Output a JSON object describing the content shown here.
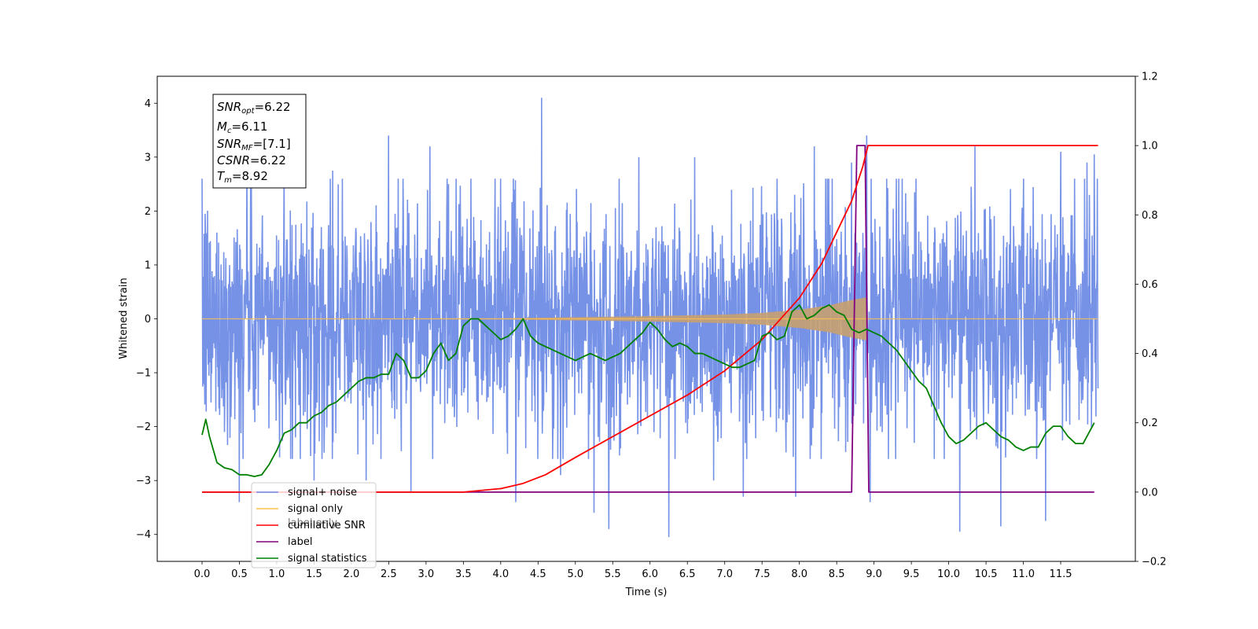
{
  "chart_data": {
    "type": "line",
    "xlabel": "Time (s)",
    "ylabel": "Whitened strain",
    "xlim": [
      -0.6,
      12.5
    ],
    "ylim": [
      -4.5,
      4.5
    ],
    "y2lim": [
      -0.2,
      1.2
    ],
    "x_ticks": [
      "0.0",
      "0.5",
      "1.0",
      "1.5",
      "2.0",
      "2.5",
      "3.0",
      "3.5",
      "4.0",
      "4.5",
      "5.0",
      "5.5",
      "6.0",
      "6.5",
      "7.0",
      "7.5",
      "8.0",
      "8.5",
      "9.0",
      "9.5",
      "10.0",
      "10.5",
      "11.0",
      "11.5"
    ],
    "y_ticks": [
      "4",
      "3",
      "2",
      "1",
      "0",
      "−1",
      "−2",
      "−3",
      "−4"
    ],
    "y2_ticks": [
      "1.2",
      "1.0",
      "0.8",
      "0.6",
      "0.4",
      "0.2",
      "0.0",
      "−0.2"
    ],
    "annotation": {
      "line1_main": "SNR",
      "line1_sub": "opt",
      "line1_val": "=6.22",
      "line2_main": "M",
      "line2_sub": "c",
      "line2_val": "=6.11",
      "line3_main": "SNR",
      "line3_sub": "MF",
      "line3_val": "=[7.1]",
      "line4_main": "CSNR",
      "line4_val": "=6.22",
      "line5_main": "T",
      "line5_sub": "m",
      "line5_val": "=8.92"
    },
    "legend": {
      "location": "lower-left",
      "entries": [
        "signal+ noise",
        "signal only",
        "cumilative SNR",
        "label",
        "signal statistics"
      ],
      "hidden_entry": "label only"
    },
    "colors": {
      "noise": "#6f8ce6",
      "signal": "#ffc04d",
      "signal_fill": "#c8a070",
      "csnr": "#ff0000",
      "label": "#800080",
      "stats": "#008000"
    },
    "series": [
      {
        "name": "signal+ noise",
        "axis": "left",
        "amplitude_std": 0.85,
        "spikes": [
          {
            "x": 0.05,
            "y": 1.4
          },
          {
            "x": 0.3,
            "y": -2.1
          },
          {
            "x": 0.5,
            "y": -3.4
          },
          {
            "x": 0.6,
            "y": 2.95
          },
          {
            "x": 1.1,
            "y": 2.8
          },
          {
            "x": 1.25,
            "y": -2.2
          },
          {
            "x": 1.5,
            "y": -3.0
          },
          {
            "x": 1.75,
            "y": 2.75
          },
          {
            "x": 2.2,
            "y": -3.0
          },
          {
            "x": 2.5,
            "y": 3.4
          },
          {
            "x": 2.8,
            "y": -3.2
          },
          {
            "x": 3.05,
            "y": 3.2
          },
          {
            "x": 3.3,
            "y": 2.5
          },
          {
            "x": 3.6,
            "y": 2.6
          },
          {
            "x": 4.2,
            "y": -3.4
          },
          {
            "x": 4.55,
            "y": 4.1
          },
          {
            "x": 4.8,
            "y": -2.9
          },
          {
            "x": 5.25,
            "y": -3.6
          },
          {
            "x": 5.45,
            "y": -3.9
          },
          {
            "x": 5.85,
            "y": 3.0
          },
          {
            "x": 6.25,
            "y": -4.05
          },
          {
            "x": 6.6,
            "y": 3.0
          },
          {
            "x": 6.85,
            "y": -3.0
          },
          {
            "x": 7.25,
            "y": -3.3
          },
          {
            "x": 7.7,
            "y": 2.6
          },
          {
            "x": 7.95,
            "y": -3.3
          },
          {
            "x": 8.2,
            "y": 3.2
          },
          {
            "x": 8.7,
            "y": 2.9
          },
          {
            "x": 8.9,
            "y": 3.4
          },
          {
            "x": 8.95,
            "y": -3.4
          },
          {
            "x": 9.3,
            "y": 2.6
          },
          {
            "x": 10.15,
            "y": -3.95
          },
          {
            "x": 10.35,
            "y": 3.2
          },
          {
            "x": 10.7,
            "y": -3.85
          },
          {
            "x": 11.3,
            "y": -3.75
          },
          {
            "x": 11.5,
            "y": 3.1
          },
          {
            "x": 11.85,
            "y": 2.9
          },
          {
            "x": 11.95,
            "y": 3.05
          }
        ],
        "x_range": [
          0.0,
          12.0
        ]
      },
      {
        "name": "signal only",
        "axis": "left",
        "envelope": [
          [
            0.0,
            0.0
          ],
          [
            4.0,
            0.01
          ],
          [
            6.0,
            0.05
          ],
          [
            7.0,
            0.08
          ],
          [
            7.5,
            0.11
          ],
          [
            8.0,
            0.17
          ],
          [
            8.4,
            0.25
          ],
          [
            8.7,
            0.35
          ],
          [
            8.9,
            0.4
          ],
          [
            8.92,
            0.0
          ],
          [
            12.0,
            0.0
          ]
        ]
      },
      {
        "name": "cumilative SNR",
        "axis": "right",
        "x": [
          0.0,
          1.0,
          2.0,
          3.0,
          3.5,
          4.0,
          4.3,
          4.6,
          5.0,
          5.5,
          6.0,
          6.5,
          7.0,
          7.5,
          8.0,
          8.3,
          8.5,
          8.7,
          8.85,
          8.92,
          12.0
        ],
        "values": [
          0.0,
          0.0,
          0.0,
          0.0,
          0.0,
          0.01,
          0.025,
          0.05,
          0.1,
          0.16,
          0.22,
          0.28,
          0.35,
          0.44,
          0.56,
          0.66,
          0.75,
          0.84,
          0.94,
          1.0,
          1.0
        ]
      },
      {
        "name": "label",
        "axis": "right",
        "x": [
          0.0,
          8.7,
          8.77,
          8.88,
          8.93,
          11.95
        ],
        "values": [
          0.0,
          0.0,
          1.0,
          1.0,
          0.0,
          0.0
        ]
      },
      {
        "name": "signal statistics",
        "axis": "right",
        "x": [
          0.0,
          0.05,
          0.1,
          0.2,
          0.3,
          0.4,
          0.5,
          0.6,
          0.7,
          0.8,
          0.9,
          1.0,
          1.1,
          1.2,
          1.3,
          1.4,
          1.5,
          1.6,
          1.7,
          1.8,
          1.9,
          2.0,
          2.1,
          2.2,
          2.3,
          2.4,
          2.5,
          2.6,
          2.7,
          2.8,
          2.9,
          3.0,
          3.1,
          3.2,
          3.3,
          3.4,
          3.5,
          3.6,
          3.7,
          3.8,
          3.9,
          4.0,
          4.1,
          4.2,
          4.3,
          4.4,
          4.5,
          4.6,
          4.7,
          4.8,
          4.9,
          5.0,
          5.1,
          5.2,
          5.3,
          5.4,
          5.5,
          5.6,
          5.7,
          5.8,
          5.9,
          6.0,
          6.1,
          6.2,
          6.3,
          6.4,
          6.5,
          6.6,
          6.7,
          6.8,
          6.9,
          7.0,
          7.1,
          7.2,
          7.3,
          7.4,
          7.5,
          7.6,
          7.7,
          7.8,
          7.9,
          8.0,
          8.1,
          8.2,
          8.3,
          8.4,
          8.5,
          8.6,
          8.7,
          8.8,
          8.9,
          9.0,
          9.1,
          9.2,
          9.3,
          9.4,
          9.5,
          9.6,
          9.7,
          9.8,
          9.9,
          10.0,
          10.1,
          10.2,
          10.3,
          10.4,
          10.5,
          10.6,
          10.7,
          10.8,
          10.9,
          11.0,
          11.1,
          11.2,
          11.3,
          11.4,
          11.5,
          11.6,
          11.7,
          11.8,
          11.95
        ],
        "values": [
          0.165,
          0.21,
          0.16,
          0.085,
          0.07,
          0.065,
          0.05,
          0.05,
          0.045,
          0.05,
          0.08,
          0.12,
          0.17,
          0.18,
          0.2,
          0.2,
          0.22,
          0.23,
          0.25,
          0.26,
          0.28,
          0.3,
          0.32,
          0.33,
          0.33,
          0.34,
          0.34,
          0.4,
          0.38,
          0.33,
          0.33,
          0.35,
          0.4,
          0.43,
          0.38,
          0.4,
          0.48,
          0.5,
          0.5,
          0.48,
          0.46,
          0.44,
          0.45,
          0.47,
          0.5,
          0.45,
          0.43,
          0.42,
          0.41,
          0.4,
          0.39,
          0.38,
          0.39,
          0.4,
          0.39,
          0.38,
          0.39,
          0.4,
          0.42,
          0.44,
          0.46,
          0.49,
          0.47,
          0.44,
          0.42,
          0.43,
          0.42,
          0.4,
          0.4,
          0.39,
          0.38,
          0.37,
          0.36,
          0.36,
          0.37,
          0.38,
          0.45,
          0.46,
          0.44,
          0.45,
          0.52,
          0.54,
          0.5,
          0.51,
          0.53,
          0.54,
          0.52,
          0.51,
          0.47,
          0.46,
          0.47,
          0.46,
          0.45,
          0.43,
          0.41,
          0.38,
          0.35,
          0.32,
          0.3,
          0.25,
          0.2,
          0.16,
          0.14,
          0.15,
          0.17,
          0.19,
          0.2,
          0.18,
          0.16,
          0.15,
          0.13,
          0.12,
          0.13,
          0.13,
          0.17,
          0.19,
          0.19,
          0.16,
          0.14,
          0.14,
          0.2
        ]
      }
    ]
  }
}
